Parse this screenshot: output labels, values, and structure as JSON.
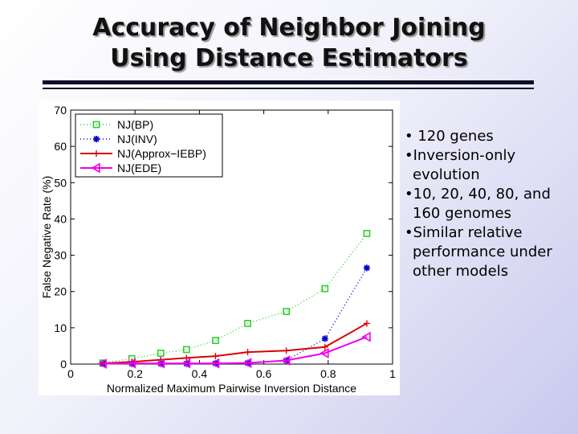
{
  "slide": {
    "title_line1": "Accuracy of Neighbor Joining",
    "title_line2": "Using Distance Estimators",
    "bullets": [
      "• 120 genes",
      "•Inversion-only evolution",
      "•10, 20, 40, 80, and 160 genomes",
      "•Similar relative performance under other models"
    ]
  },
  "chart_data": {
    "type": "line",
    "title": "",
    "xlabel": "Normalized Maximum Pairwise Inversion Distance",
    "ylabel": "False Negative Rate (%)",
    "xlim": [
      0,
      1
    ],
    "ylim": [
      0,
      70
    ],
    "xticks": [
      0,
      0.2,
      0.4,
      0.6,
      0.8,
      1
    ],
    "xtick_labels": [
      "0",
      "0.2",
      "0.4",
      "0.6",
      "0.8",
      "1"
    ],
    "yticks": [
      0,
      10,
      20,
      30,
      40,
      50,
      60,
      70
    ],
    "ytick_labels": [
      "0",
      "10",
      "20",
      "30",
      "40",
      "50",
      "60",
      "70"
    ],
    "legend_position": "top-left",
    "series": [
      {
        "name": "NJ(BP)",
        "color": "#33cc33",
        "marker": "square",
        "dash": "1,3",
        "x": [
          0.1,
          0.19,
          0.28,
          0.36,
          0.45,
          0.55,
          0.67,
          0.79,
          0.92
        ],
        "y": [
          0.3,
          1.5,
          3,
          4,
          6.5,
          11.2,
          14.5,
          20.8,
          36
        ]
      },
      {
        "name": "NJ(INV)",
        "color": "#0000cc",
        "marker": "star",
        "dash": "1,3",
        "x": [
          0.1,
          0.19,
          0.28,
          0.36,
          0.45,
          0.55,
          0.67,
          0.79,
          0.92
        ],
        "y": [
          0.1,
          0.1,
          0.1,
          0.1,
          0.2,
          0.3,
          1.0,
          7.0,
          26.5
        ]
      },
      {
        "name": "NJ(Approx−IEBP)",
        "color": "#dd0000",
        "marker": "plus",
        "dash": "",
        "x": [
          0.1,
          0.19,
          0.28,
          0.36,
          0.45,
          0.55,
          0.67,
          0.79,
          0.92
        ],
        "y": [
          0.2,
          0.6,
          1.2,
          1.7,
          2.2,
          3.3,
          3.7,
          4.7,
          11.2
        ]
      },
      {
        "name": "NJ(EDE)",
        "color": "#ee00ee",
        "marker": "triangle-left",
        "dash": "",
        "x": [
          0.1,
          0.19,
          0.28,
          0.36,
          0.45,
          0.55,
          0.67,
          0.79,
          0.92
        ],
        "y": [
          0.1,
          0.2,
          0.2,
          0.2,
          0.2,
          0.3,
          1.0,
          3.0,
          7.5
        ]
      }
    ]
  }
}
